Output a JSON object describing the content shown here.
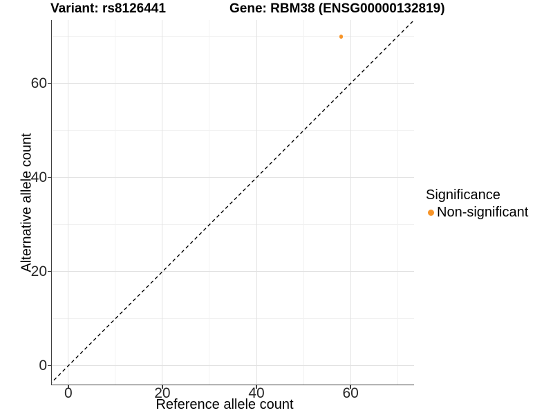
{
  "chart_data": {
    "type": "scatter",
    "title_left": "Variant: rs8126441",
    "title_right": "Gene: RBM38 (ENSG00000132819)",
    "xlabel": "Reference allele count",
    "ylabel": "Alternative allele count",
    "xlim": [
      -3.5,
      73.5
    ],
    "ylim": [
      -4,
      73.5
    ],
    "x_ticks": [
      0,
      20,
      40,
      60
    ],
    "y_ticks": [
      0,
      20,
      40,
      60
    ],
    "x_minor_ticks": [
      10,
      30,
      50,
      70
    ],
    "y_minor_ticks": [
      10,
      30,
      50,
      70
    ],
    "grid": true,
    "identity_line": {
      "equation": "y = x",
      "style": "dashed",
      "color": "#000000",
      "from": -4,
      "to": 74
    },
    "series": [
      {
        "name": "Non-significant",
        "color": "#F79428",
        "marker": "circle",
        "points": [
          {
            "x": 58,
            "y": 70
          }
        ]
      }
    ],
    "legend": {
      "title": "Significance",
      "position": "right",
      "items": [
        {
          "label": "Non-significant",
          "color": "#F79428"
        }
      ]
    }
  },
  "colors": {
    "accent_orange": "#F79428",
    "grid_major": "#e2e2e2",
    "grid_minor": "#f1f1f1",
    "axis_line": "#404040",
    "background": "#ffffff"
  }
}
